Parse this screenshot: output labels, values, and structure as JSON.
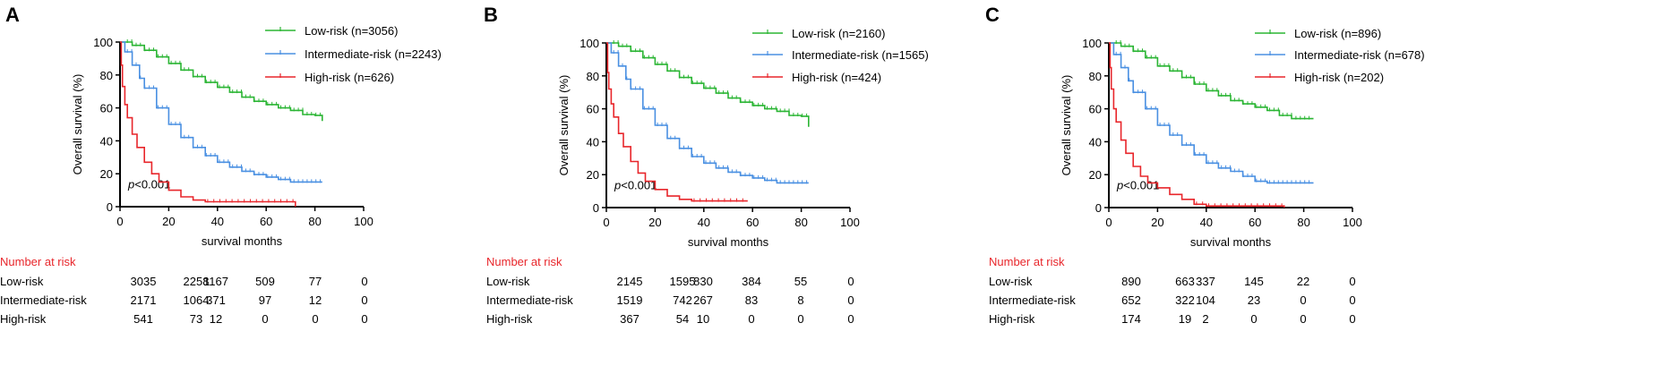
{
  "colors": {
    "low": "#2BB534",
    "intermediate": "#4A90E2",
    "high": "#E8262B",
    "axis": "#000000",
    "risk_title": "#E8262B"
  },
  "chart_data": [
    {
      "panel": "A",
      "type": "line",
      "xlabel": "survival months",
      "ylabel": "Overall survival (%)",
      "xlim": [
        0,
        100
      ],
      "ylim": [
        0,
        100
      ],
      "xticks": [
        0,
        20,
        40,
        60,
        80,
        100
      ],
      "yticks": [
        0,
        20,
        40,
        60,
        80,
        100
      ],
      "pvalue": {
        "prefix": "p",
        "rest": "<0.001"
      },
      "legend": [
        "Low-risk (n=3056)",
        "Intermediate-risk (n=2243)",
        "High-risk (n=626)"
      ],
      "series": [
        {
          "name": "Low-risk",
          "color_key": "low",
          "x": [
            0,
            5,
            10,
            15,
            20,
            25,
            30,
            35,
            40,
            45,
            50,
            55,
            60,
            65,
            70,
            75,
            80,
            83,
            83
          ],
          "y": [
            100,
            98,
            95,
            91,
            87,
            83,
            79,
            75.5,
            72.5,
            69.5,
            66.5,
            64,
            62,
            60,
            58.5,
            56,
            55.5,
            55.5,
            52
          ]
        },
        {
          "name": "Intermediate-risk",
          "color_key": "intermediate",
          "x": [
            0,
            2,
            5,
            8,
            10,
            15,
            20,
            25,
            30,
            35,
            40,
            45,
            50,
            55,
            60,
            65,
            70,
            75,
            83
          ],
          "y": [
            100,
            94,
            86,
            78,
            72,
            60,
            50,
            42,
            36,
            31,
            27,
            24,
            21.5,
            19.5,
            18,
            16.5,
            15,
            15,
            15
          ]
        },
        {
          "name": "High-risk",
          "color_key": "high",
          "x": [
            0,
            0.5,
            1,
            2,
            3,
            5,
            7,
            10,
            13,
            16,
            20,
            25,
            30,
            35,
            40,
            45,
            55,
            65,
            72,
            72
          ],
          "y": [
            100,
            86,
            73,
            62,
            54,
            44,
            36,
            27,
            20,
            15,
            10,
            6,
            4,
            3,
            3,
            3,
            3,
            3,
            3,
            0
          ]
        }
      ]
    },
    {
      "panel": "B",
      "type": "line",
      "xlabel": "survival months",
      "ylabel": "Overall survival (%)",
      "xlim": [
        0,
        100
      ],
      "ylim": [
        0,
        100
      ],
      "xticks": [
        0,
        20,
        40,
        60,
        80,
        100
      ],
      "yticks": [
        0,
        20,
        40,
        60,
        80,
        100
      ],
      "pvalue": {
        "prefix": "p",
        "rest": "<0.001"
      },
      "legend": [
        "Low-risk (n=2160)",
        "Intermediate-risk (n=1565)",
        "High-risk (n=424)"
      ],
      "series": [
        {
          "name": "Low-risk",
          "color_key": "low",
          "x": [
            0,
            5,
            10,
            15,
            20,
            25,
            30,
            35,
            40,
            45,
            50,
            55,
            60,
            65,
            70,
            75,
            80,
            83,
            83
          ],
          "y": [
            100,
            98,
            95,
            91,
            87,
            83,
            79,
            75.5,
            72.5,
            69.5,
            66.5,
            64,
            62,
            60,
            58.5,
            56,
            55.5,
            55.5,
            49
          ]
        },
        {
          "name": "Intermediate-risk",
          "color_key": "intermediate",
          "x": [
            0,
            2,
            5,
            8,
            10,
            15,
            20,
            25,
            30,
            35,
            40,
            45,
            50,
            55,
            60,
            65,
            70,
            75,
            83
          ],
          "y": [
            100,
            94,
            86,
            78,
            72,
            60,
            50,
            42,
            36,
            31,
            27,
            24,
            21.5,
            19.5,
            18,
            16.5,
            15,
            15,
            15
          ]
        },
        {
          "name": "High-risk",
          "color_key": "high",
          "x": [
            0,
            0.5,
            1,
            2,
            3,
            5,
            7,
            10,
            13,
            16,
            20,
            25,
            30,
            35,
            40,
            45,
            50,
            58
          ],
          "y": [
            100,
            82,
            72,
            63,
            55,
            45,
            37,
            28,
            21,
            16,
            11,
            7,
            5,
            4,
            4,
            4,
            4,
            4
          ]
        }
      ]
    },
    {
      "panel": "C",
      "type": "line",
      "xlabel": "survival months",
      "ylabel": "Overall survival (%)",
      "xlim": [
        0,
        100
      ],
      "ylim": [
        0,
        100
      ],
      "xticks": [
        0,
        20,
        40,
        60,
        80,
        100
      ],
      "yticks": [
        0,
        20,
        40,
        60,
        80,
        100
      ],
      "pvalue": {
        "prefix": "p",
        "rest": "<0.001"
      },
      "legend": [
        "Low-risk (n=896)",
        "Intermediate-risk (n=678)",
        "High-risk (n=202)"
      ],
      "series": [
        {
          "name": "Low-risk",
          "color_key": "low",
          "x": [
            0,
            5,
            10,
            15,
            20,
            25,
            30,
            35,
            40,
            45,
            50,
            55,
            60,
            65,
            70,
            75,
            80,
            84
          ],
          "y": [
            100,
            98,
            95,
            91,
            86,
            83,
            79,
            75,
            71,
            68,
            65,
            63,
            61,
            59,
            56,
            54,
            54,
            54
          ]
        },
        {
          "name": "Intermediate-risk",
          "color_key": "intermediate",
          "x": [
            0,
            2,
            5,
            8,
            10,
            15,
            20,
            25,
            30,
            35,
            40,
            45,
            50,
            55,
            60,
            65,
            70,
            75,
            84
          ],
          "y": [
            100,
            93,
            85,
            77,
            70,
            60,
            50,
            44,
            38,
            32,
            27,
            24,
            22,
            19,
            16,
            15,
            15,
            15,
            15
          ]
        },
        {
          "name": "High-risk",
          "color_key": "high",
          "x": [
            0,
            0.5,
            1,
            2,
            3,
            5,
            7,
            10,
            13,
            16,
            20,
            25,
            30,
            35,
            40,
            45,
            55,
            65,
            72,
            72
          ],
          "y": [
            100,
            85,
            72,
            60,
            52,
            41,
            33,
            25,
            19,
            15,
            12,
            8,
            5,
            2,
            1,
            1,
            1,
            1,
            1,
            0
          ]
        }
      ]
    }
  ],
  "risk_tables": [
    {
      "title": "Number at risk",
      "rows": [
        {
          "label": "Low-risk",
          "values": [
            "3035",
            "2258",
            "1167",
            "509",
            "77",
            "0"
          ]
        },
        {
          "label": "Intermediate-risk",
          "values": [
            "2171",
            "1064",
            "371",
            "97",
            "12",
            "0"
          ]
        },
        {
          "label": "High-risk",
          "values": [
            "541",
            "73",
            "12",
            "0",
            "0",
            "0"
          ]
        }
      ]
    },
    {
      "title": "Number at risk",
      "rows": [
        {
          "label": "Low-risk",
          "values": [
            "2145",
            "1595",
            "830",
            "384",
            "55",
            "0"
          ]
        },
        {
          "label": "Intermediate-risk",
          "values": [
            "1519",
            "742",
            "267",
            "83",
            "8",
            "0"
          ]
        },
        {
          "label": "High-risk",
          "values": [
            "367",
            "54",
            "10",
            "0",
            "0",
            "0"
          ]
        }
      ]
    },
    {
      "title": "Number at risk",
      "rows": [
        {
          "label": "Low-risk",
          "values": [
            "890",
            "663",
            "337",
            "145",
            "22",
            "0"
          ]
        },
        {
          "label": "Intermediate-risk",
          "values": [
            "652",
            "322",
            "104",
            "23",
            "0",
            "0"
          ]
        },
        {
          "label": "High-risk",
          "values": [
            "174",
            "19",
            "2",
            "0",
            "0",
            "0"
          ]
        }
      ]
    }
  ]
}
